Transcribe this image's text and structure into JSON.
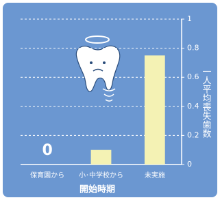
{
  "chart_data": {
    "type": "bar",
    "categories": [
      "保育園から",
      "小･中学校から",
      "未実施"
    ],
    "values": [
      0,
      0.1,
      0.75
    ],
    "color": "#f4f2b4",
    "ylim": [
      0,
      1
    ],
    "yticks": [
      0,
      0.2,
      0.4,
      0.6,
      0.8,
      1
    ],
    "grid": true,
    "x_label": "開始時期",
    "y_label": "一人平均喪失歯数"
  }
}
